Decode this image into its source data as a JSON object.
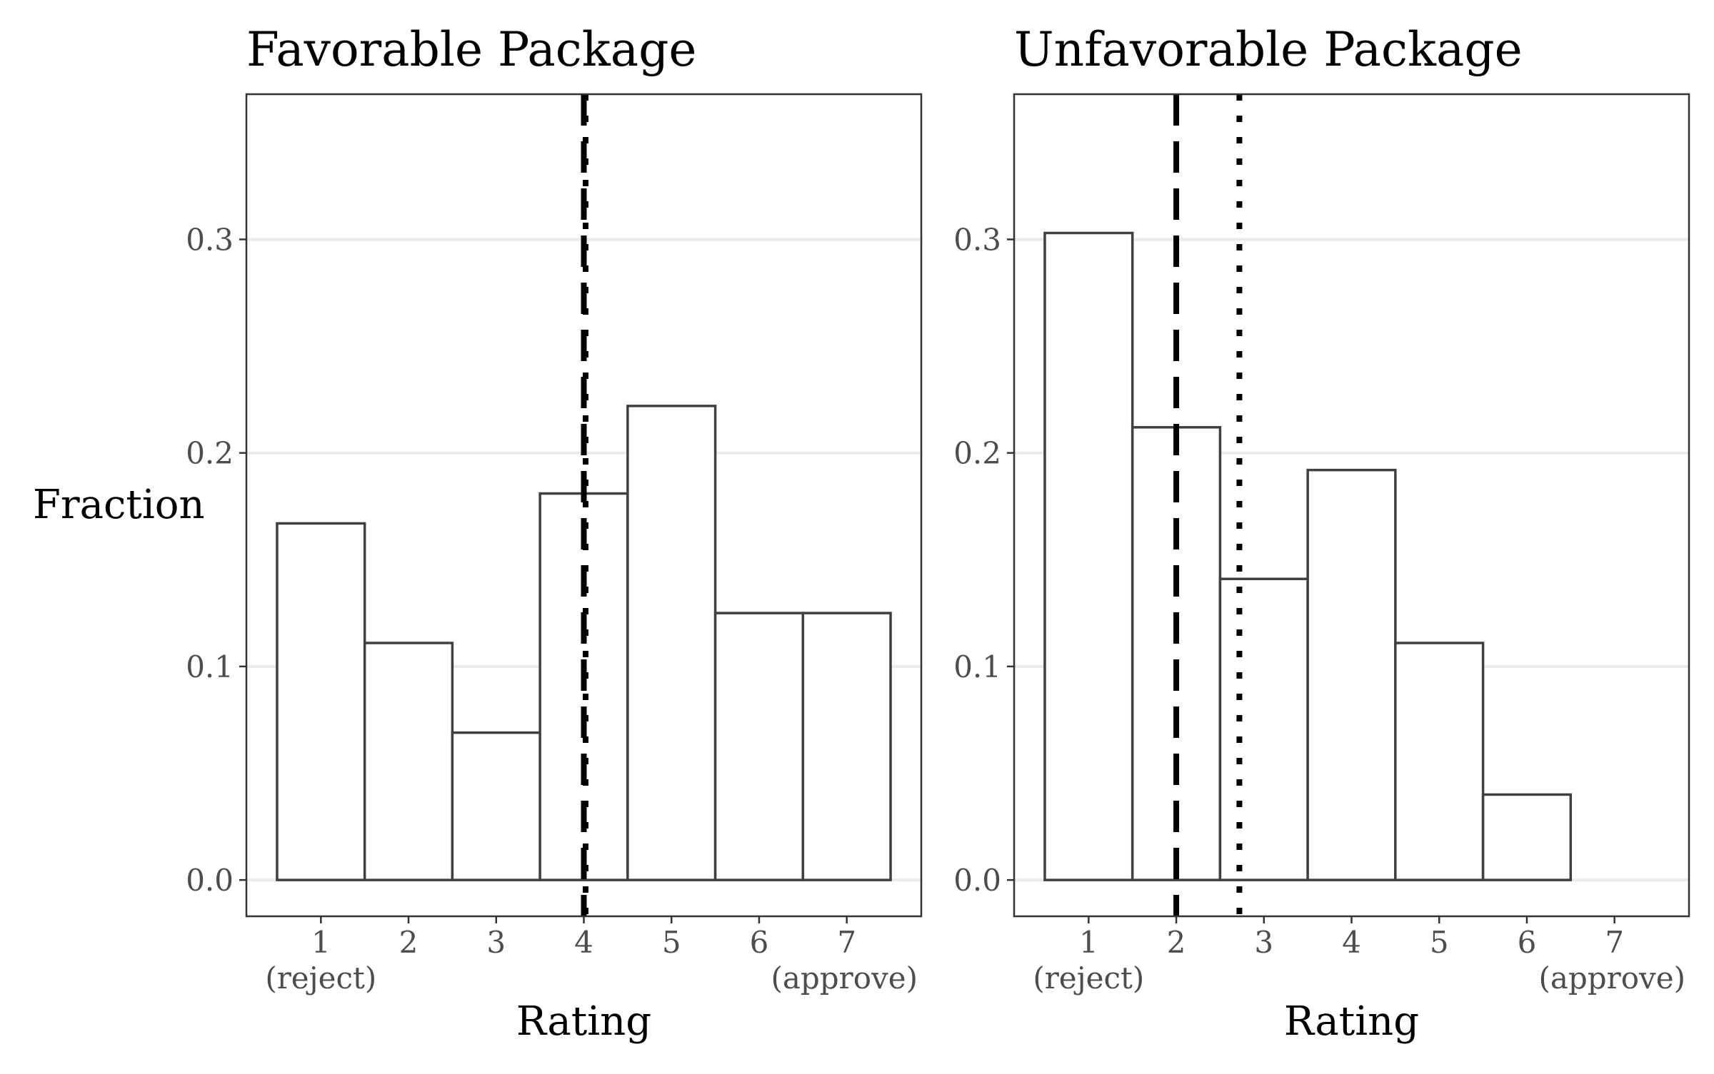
{
  "chart_data": [
    {
      "type": "bar",
      "title": "Favorable Package",
      "xlabel": "Rating",
      "ylabel": "Fraction",
      "categories": [
        "1",
        "2",
        "3",
        "4",
        "5",
        "6",
        "7"
      ],
      "x_sublabels": {
        "1": "(reject)",
        "7": "(approve)"
      },
      "values": [
        0.167,
        0.111,
        0.069,
        0.181,
        0.222,
        0.125,
        0.125
      ],
      "xlim": [
        0.15,
        7.85
      ],
      "ylim": [
        -0.017,
        0.368
      ],
      "yticks": [
        "0.0",
        "0.1",
        "0.2",
        "0.3"
      ],
      "reference_lines": [
        {
          "style": "dashed",
          "x": 4.0
        },
        {
          "style": "dotted",
          "x": 4.02
        }
      ],
      "grid": "horizontal"
    },
    {
      "type": "bar",
      "title": "Unfavorable Package",
      "xlabel": "Rating",
      "ylabel": "",
      "categories": [
        "1",
        "2",
        "3",
        "4",
        "5",
        "6",
        "7"
      ],
      "x_sublabels": {
        "1": "(reject)",
        "7": "(approve)"
      },
      "values": [
        0.303,
        0.212,
        0.141,
        0.192,
        0.111,
        0.04,
        0.0
      ],
      "xlim": [
        0.15,
        7.85
      ],
      "ylim": [
        -0.017,
        0.368
      ],
      "yticks": [
        "0.0",
        "0.1",
        "0.2",
        "0.3"
      ],
      "reference_lines": [
        {
          "style": "dashed",
          "x": 2.0
        },
        {
          "style": "dotted",
          "x": 2.72
        }
      ],
      "grid": "horizontal"
    }
  ]
}
